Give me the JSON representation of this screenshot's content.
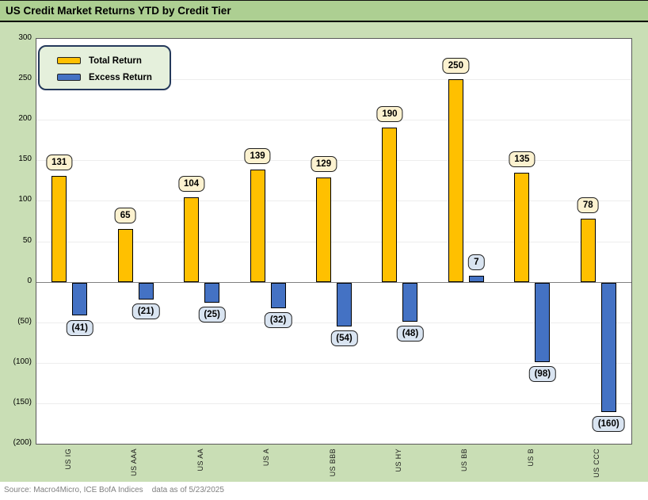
{
  "title": "US Credit Market Returns YTD by Credit Tier",
  "source": "Source: Macro4Micro, ICE BofA Indices    data as of 5/23/2025",
  "legend": {
    "items": [
      {
        "label": "Total Return",
        "color": "#FFC000"
      },
      {
        "label": "Excess Return",
        "color": "#4472C4"
      }
    ]
  },
  "colors": {
    "title_band": "#adcf92",
    "chart_background": "#c9deb5",
    "legend_background": "#e5f0dc",
    "legend_border": "#24395b",
    "total_return_bar": "#FFC000",
    "excess_return_bar": "#4472C4",
    "total_label_bg": "#fcf2d0",
    "excess_label_bg": "#d9e4f1",
    "source_text": "#808080"
  },
  "chart_data": {
    "type": "bar",
    "title": "US Credit Market Returns YTD by Credit Tier",
    "categories": [
      "US IG",
      "US AAA",
      "US AA",
      "US A",
      "US BBB",
      "US HY",
      "US BB",
      "US B",
      "US CCC"
    ],
    "series": [
      {
        "name": "Total Return",
        "color": "#FFC000",
        "label_bg": "#fcf2d0",
        "values": [
          131,
          65,
          104,
          139,
          129,
          190,
          250,
          135,
          78
        ]
      },
      {
        "name": "Excess Return",
        "color": "#4472C4",
        "label_bg": "#d9e4f1",
        "values": [
          -41,
          -21,
          -25,
          -32,
          -54,
          -48,
          7,
          -98,
          -160
        ]
      }
    ],
    "xlabel": "",
    "ylabel": "",
    "ylim": [
      -200,
      300
    ],
    "ytick_step": 50,
    "ytick_labels": [
      "300",
      "250",
      "200",
      "150",
      "100",
      "50",
      "0",
      "(50)",
      "(100)",
      "(150)",
      "(200)"
    ],
    "negative_label_format": "parentheses",
    "grid": true,
    "legend_position": "top-left"
  }
}
